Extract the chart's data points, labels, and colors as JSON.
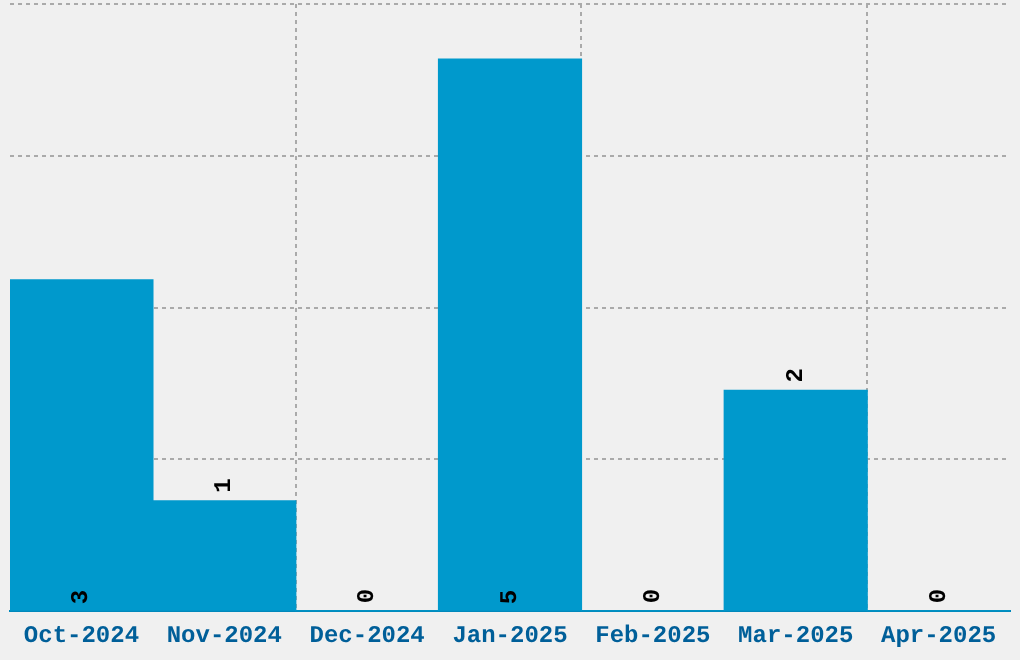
{
  "chart_data": {
    "type": "bar",
    "categories": [
      "Oct-2024",
      "Nov-2024",
      "Dec-2024",
      "Jan-2025",
      "Feb-2025",
      "Mar-2025",
      "Apr-2025"
    ],
    "values": [
      3,
      1,
      0,
      5,
      0,
      2,
      0
    ],
    "color": "#0099cc",
    "ylim": [
      0,
      5.5
    ],
    "yticks": [
      {
        "value": 0,
        "label": null
      },
      {
        "value": 1.375,
        "label": null
      },
      {
        "value": 2.75,
        "label": null
      },
      {
        "value": 4.125,
        "label": null
      },
      {
        "value": 5.5,
        "label": null
      }
    ],
    "tick_labels": "x",
    "grid": true,
    "data_labels": true
  }
}
